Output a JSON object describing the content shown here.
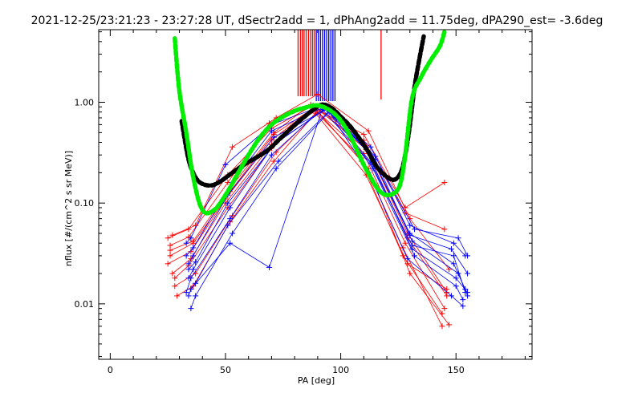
{
  "chart_data": {
    "type": "line",
    "title": "2021-12-25/23:21:23 - 23:27:28 UT, dSectr2add = 1, dPhAng2add = 11.75deg, dPA290_est=  -3.6deg",
    "xlabel": "PA [deg]",
    "ylabel": "nflux [#/(cm^2 s sr MeV)]",
    "xlim": [
      -5,
      183
    ],
    "ylim_log10": [
      -2.55,
      0.72
    ],
    "y_scale": "log",
    "x_ticks": [
      {
        "v": 0,
        "label": "0"
      },
      {
        "v": 50,
        "label": "50"
      },
      {
        "v": 100,
        "label": "100"
      },
      {
        "v": 150,
        "label": "150"
      }
    ],
    "y_ticks": [
      {
        "v": 0.01,
        "label": "0.01"
      },
      {
        "v": 0.1,
        "label": "0.10"
      },
      {
        "v": 1,
        "label": "1.00"
      }
    ],
    "colors": {
      "red": "#ff0000",
      "blue": "#0000ff",
      "green": "#00ee00",
      "black": "#000000"
    },
    "vertical_lines": {
      "red": {
        "x": [
          81.5,
          82.5,
          83.3,
          84.1,
          85,
          86,
          87,
          87.8,
          88.6,
          117.5
        ],
        "color": "#ff0000",
        "x_ticks": [
          81.5,
          82.5,
          83.3,
          84.1,
          85,
          86,
          87,
          87.8,
          88.6
        ]
      },
      "blue": {
        "x": [
          89.4,
          90.3,
          91.2,
          92.1,
          93,
          93.9,
          94.8,
          95.7,
          96.6,
          97.5
        ],
        "color": "#0000ff"
      }
    },
    "curves": {
      "green": {
        "x": [
          28,
          30,
          33,
          36,
          40,
          45,
          50,
          55,
          60,
          65,
          70,
          75,
          80,
          85,
          90,
          95,
          100,
          105,
          110,
          115,
          118,
          121,
          124,
          126,
          128,
          131,
          135,
          139,
          143,
          145
        ],
        "y": [
          4.3,
          1.3,
          0.5,
          0.18,
          0.085,
          0.085,
          0.12,
          0.19,
          0.3,
          0.45,
          0.6,
          0.72,
          0.82,
          0.89,
          0.93,
          0.84,
          0.66,
          0.42,
          0.24,
          0.15,
          0.125,
          0.12,
          0.13,
          0.16,
          0.3,
          1.1,
          1.8,
          2.6,
          3.6,
          5.0
        ]
      },
      "black": {
        "x": [
          31,
          34,
          37,
          40,
          44,
          48,
          53,
          58,
          63,
          68,
          73,
          78,
          83,
          88,
          92,
          96,
          100,
          104,
          108,
          112,
          115,
          119,
          123,
          126,
          128,
          130,
          132,
          134,
          136
        ],
        "y": [
          0.65,
          0.27,
          0.18,
          0.155,
          0.15,
          0.165,
          0.2,
          0.24,
          0.28,
          0.33,
          0.42,
          0.54,
          0.68,
          0.84,
          0.95,
          0.88,
          0.72,
          0.58,
          0.44,
          0.32,
          0.24,
          0.19,
          0.17,
          0.2,
          0.3,
          0.6,
          1.4,
          2.6,
          4.5
        ]
      }
    },
    "series": [
      {
        "color": "red",
        "x": [
          25,
          34,
          51,
          70,
          88,
          110,
          128,
          145
        ],
        "y": [
          0.045,
          0.055,
          0.19,
          0.55,
          0.93,
          0.42,
          0.08,
          0.055
        ]
      },
      {
        "color": "red",
        "x": [
          26,
          36,
          52,
          71,
          89,
          111,
          129,
          146
        ],
        "y": [
          0.03,
          0.04,
          0.13,
          0.48,
          0.9,
          0.34,
          0.045,
          0.012
        ]
      },
      {
        "color": "red",
        "x": [
          27,
          35,
          50,
          70,
          88,
          109,
          127,
          144
        ],
        "y": [
          0.02,
          0.028,
          0.1,
          0.38,
          0.85,
          0.28,
          0.036,
          0.006
        ]
      },
      {
        "color": "red",
        "x": [
          28,
          37,
          53,
          72,
          90,
          112,
          130,
          147
        ],
        "y": [
          0.015,
          0.02,
          0.075,
          0.32,
          0.8,
          0.22,
          0.02,
          0.0062
        ]
      },
      {
        "color": "red",
        "x": [
          26,
          34,
          51,
          69,
          87,
          110,
          128,
          145
        ],
        "y": [
          0.038,
          0.046,
          0.16,
          0.62,
          0.92,
          0.48,
          0.09,
          0.16
        ]
      },
      {
        "color": "red",
        "x": [
          29,
          36,
          52,
          71,
          89,
          111,
          129,
          146
        ],
        "y": [
          0.012,
          0.015,
          0.065,
          0.26,
          0.78,
          0.19,
          0.025,
          0.014
        ]
      },
      {
        "color": "red",
        "x": [
          25,
          35,
          50,
          70,
          88,
          110,
          128,
          145
        ],
        "y": [
          0.025,
          0.033,
          0.11,
          0.42,
          0.88,
          0.31,
          0.04,
          0.009
        ]
      },
      {
        "color": "red",
        "x": [
          27,
          37,
          53,
          72,
          90,
          112,
          130,
          147
        ],
        "y": [
          0.048,
          0.06,
          0.36,
          0.7,
          1.2,
          0.52,
          0.07,
          0.022
        ]
      },
      {
        "color": "red",
        "x": [
          28,
          34,
          51,
          70,
          89,
          109,
          127,
          144
        ],
        "y": [
          0.018,
          0.024,
          0.09,
          0.35,
          0.86,
          0.26,
          0.03,
          0.008
        ]
      },
      {
        "color": "red",
        "x": [
          26,
          36,
          52,
          71,
          87,
          111,
          129,
          146
        ],
        "y": [
          0.034,
          0.042,
          0.14,
          0.5,
          0.95,
          0.37,
          0.05,
          0.013
        ]
      },
      {
        "color": "blue",
        "x": [
          33,
          35,
          52,
          70,
          93,
          113,
          130,
          149,
          154
        ],
        "y": [
          0.013,
          0.018,
          0.07,
          0.3,
          0.9,
          0.3,
          0.05,
          0.025,
          0.014
        ]
      },
      {
        "color": "blue",
        "x": [
          34,
          36,
          51,
          71,
          94,
          114,
          131,
          150,
          155
        ],
        "y": [
          0.025,
          0.03,
          0.12,
          0.45,
          0.85,
          0.24,
          0.035,
          0.018,
          0.013
        ]
      },
      {
        "color": "blue",
        "x": [
          35,
          37,
          53,
          72,
          95,
          112,
          129,
          148,
          153
        ],
        "y": [
          0.009,
          0.012,
          0.05,
          0.22,
          0.8,
          0.2,
          0.028,
          0.012,
          0.0095
        ]
      },
      {
        "color": "blue",
        "x": [
          33,
          35,
          50,
          70,
          92,
          113,
          130,
          149,
          154
        ],
        "y": [
          0.04,
          0.045,
          0.24,
          0.6,
          0.92,
          0.36,
          0.06,
          0.04,
          0.03
        ]
      },
      {
        "color": "blue",
        "x": [
          34,
          36,
          52,
          71,
          94,
          115,
          131,
          151,
          155
        ],
        "y": [
          0.018,
          0.022,
          0.09,
          0.38,
          0.88,
          0.27,
          0.042,
          0.02,
          0.012
        ]
      },
      {
        "color": "blue",
        "x": [
          35,
          37,
          51,
          73,
          95,
          114,
          132,
          150,
          153
        ],
        "y": [
          0.014,
          0.016,
          0.06,
          0.26,
          0.82,
          0.22,
          0.03,
          0.015,
          0.011
        ]
      },
      {
        "color": "blue",
        "x": [
          33,
          36,
          53,
          70,
          93,
          112,
          130,
          148,
          155
        ],
        "y": [
          0.03,
          0.036,
          0.16,
          0.52,
          0.9,
          0.33,
          0.048,
          0.035,
          0.02
        ]
      },
      {
        "color": "blue",
        "x": [
          34,
          35,
          52,
          69,
          92,
          113,
          131,
          149,
          154
        ],
        "y": [
          0.012,
          0.014,
          0.04,
          0.023,
          0.85,
          0.25,
          0.038,
          0.03,
          0.013
        ]
      },
      {
        "color": "blue",
        "x": [
          34,
          37,
          51,
          72,
          94,
          115,
          132,
          151,
          155
        ],
        "y": [
          0.022,
          0.026,
          0.1,
          0.4,
          0.87,
          0.29,
          0.055,
          0.045,
          0.03
        ]
      }
    ]
  }
}
